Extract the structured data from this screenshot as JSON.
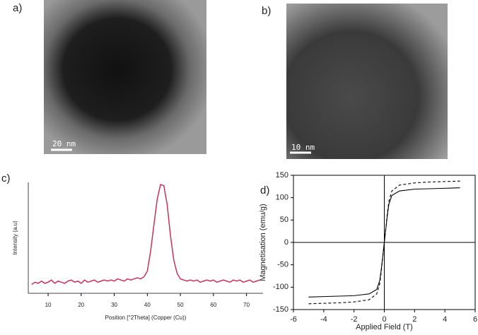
{
  "panels": {
    "a": "a)",
    "b": "b)",
    "c": "c)",
    "d": "d)",
    "scale_a": "20 nm",
    "scale_b": "10 nm"
  },
  "chart_data": [
    {
      "type": "line",
      "x_label": "Position [°2Theta] (Copper (Cu))",
      "y_label": "Intensity (a.u)",
      "xlim": [
        4,
        75
      ],
      "xticks": [
        10,
        20,
        30,
        40,
        50,
        60,
        70
      ],
      "ylim": [
        0,
        100
      ],
      "x": [
        5,
        6,
        7,
        8,
        9,
        10,
        11,
        12,
        13,
        14,
        15,
        16,
        17,
        18,
        19,
        20,
        21,
        22,
        23,
        24,
        25,
        26,
        27,
        28,
        29,
        30,
        31,
        32,
        33,
        34,
        35,
        36,
        37,
        38,
        39,
        40,
        41,
        42,
        43,
        44,
        45,
        46,
        47,
        48,
        49,
        50,
        51,
        52,
        53,
        54,
        55,
        56,
        57,
        58,
        59,
        60,
        61,
        62,
        63,
        64,
        65,
        66,
        67,
        68,
        69,
        70,
        71,
        72,
        73,
        74
      ],
      "series": [
        {
          "color": "#c8325a",
          "values": [
            8,
            10,
            9,
            11,
            9,
            10,
            12,
            9,
            11,
            10,
            9,
            11,
            12,
            10,
            11,
            9,
            12,
            10,
            11,
            12,
            10,
            11,
            12,
            11,
            12,
            11,
            13,
            12,
            11,
            13,
            12,
            13,
            14,
            13,
            15,
            20,
            38,
            62,
            85,
            98,
            97,
            80,
            52,
            30,
            18,
            13,
            12,
            11,
            12,
            11,
            12,
            10,
            11,
            12,
            11,
            12,
            10,
            11,
            12,
            11,
            10,
            12,
            11,
            12,
            10,
            11,
            12,
            10,
            11,
            12
          ]
        }
      ]
    },
    {
      "type": "line",
      "x_label": "Applied Field (T)",
      "y_label": "Magnetisation (emu/g)",
      "xlim": [
        -6,
        6
      ],
      "xticks": [
        -6,
        -4,
        -2,
        0,
        2,
        4,
        6
      ],
      "ylim": [
        -150,
        150
      ],
      "yticks": [
        -150,
        -100,
        -50,
        0,
        50,
        100,
        150
      ],
      "x": [
        -5,
        -4,
        -3,
        -2,
        -1,
        -0.5,
        -0.3,
        -0.2,
        -0.1,
        0,
        0.1,
        0.2,
        0.3,
        0.5,
        1,
        2,
        3,
        4,
        5
      ],
      "series": [
        {
          "color": "#000000",
          "dashed": false,
          "values": [
            -122,
            -121,
            -120,
            -119,
            -115,
            -105,
            -85,
            -60,
            -30,
            0,
            30,
            60,
            85,
            105,
            115,
            119,
            120,
            121,
            122
          ]
        },
        {
          "color": "#000000",
          "dashed": true,
          "values": [
            -137,
            -136,
            -135,
            -133,
            -128,
            -115,
            -92,
            -65,
            -32,
            0,
            32,
            65,
            92,
            115,
            128,
            133,
            135,
            136,
            137
          ]
        }
      ]
    }
  ]
}
